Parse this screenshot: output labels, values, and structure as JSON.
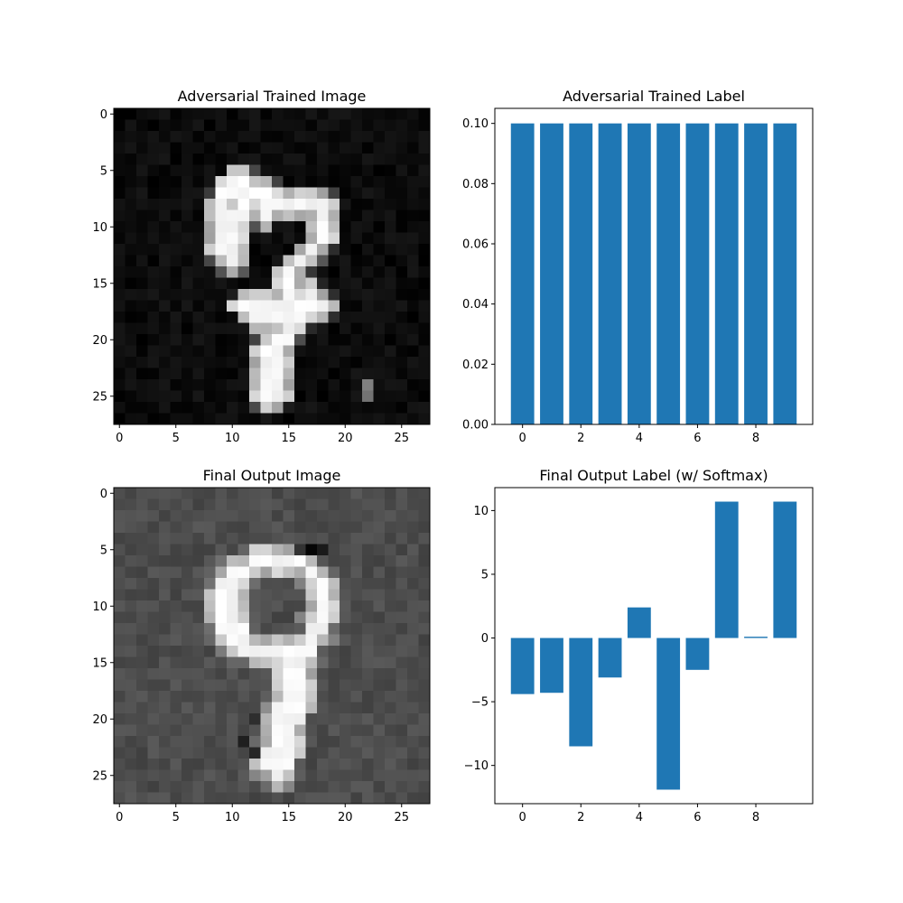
{
  "chart_data": [
    {
      "type": "heatmap",
      "title": "Adversarial Trained Image",
      "xticks": [
        0,
        5,
        10,
        15,
        20,
        25
      ],
      "yticks": [
        0,
        5,
        10,
        15,
        20,
        25
      ],
      "xlim": [
        -0.5,
        27.5
      ],
      "ylim": [
        27.5,
        -0.5
      ],
      "colormap": "gray",
      "grid_size": [
        28,
        28
      ],
      "strokes": [
        [
          [
            10,
            6
          ],
          [
            11,
            6
          ],
          [
            12,
            7
          ],
          [
            13,
            7
          ],
          [
            14,
            8
          ],
          [
            15,
            8
          ],
          [
            16,
            8
          ],
          [
            17,
            8
          ],
          [
            18,
            8
          ],
          [
            18,
            9
          ],
          [
            18,
            10
          ],
          [
            18,
            11
          ],
          [
            17,
            12
          ],
          [
            16,
            13
          ],
          [
            15,
            14
          ],
          [
            15,
            15
          ],
          [
            15,
            16
          ]
        ],
        [
          [
            10,
            6
          ],
          [
            9,
            8
          ],
          [
            9,
            10
          ],
          [
            9,
            12
          ],
          [
            10,
            13
          ]
        ],
        [
          [
            11,
            6
          ],
          [
            11,
            8
          ],
          [
            10,
            10
          ],
          [
            10,
            12
          ]
        ],
        [
          [
            13,
            7
          ],
          [
            13,
            9
          ]
        ],
        [
          [
            15,
            14
          ],
          [
            15,
            17
          ],
          [
            15,
            19
          ],
          [
            14,
            21
          ],
          [
            14,
            23
          ],
          [
            14,
            25
          ]
        ],
        [
          [
            13,
            21
          ],
          [
            13,
            23
          ],
          [
            13,
            25
          ]
        ],
        [
          [
            11,
            17
          ],
          [
            12,
            17
          ],
          [
            13,
            17
          ],
          [
            14,
            17
          ],
          [
            15,
            17
          ],
          [
            16,
            17
          ],
          [
            17,
            17
          ],
          [
            18,
            17
          ]
        ],
        [
          [
            12,
            18
          ],
          [
            16,
            18
          ],
          [
            17,
            16
          ]
        ]
      ],
      "highlights": [
        [
          22,
          24,
          0.5
        ],
        [
          22,
          25,
          0.45
        ]
      ],
      "noise_level": 0.09
    },
    {
      "type": "bar",
      "title": "Adversarial Trained Label",
      "categories": [
        0,
        1,
        2,
        3,
        4,
        5,
        6,
        7,
        8,
        9
      ],
      "values": [
        0.1,
        0.1,
        0.1,
        0.1,
        0.1,
        0.1,
        0.1,
        0.1,
        0.1,
        0.1
      ],
      "xticks": [
        0,
        2,
        4,
        6,
        8
      ],
      "yticks": [
        "0.00",
        "0.02",
        "0.04",
        "0.06",
        "0.08",
        "0.10"
      ],
      "xlim": [
        -0.95,
        9.95
      ],
      "ylim": [
        0,
        0.105
      ],
      "bar_color": "#1f77b4"
    },
    {
      "type": "heatmap",
      "title": "Final Output Image",
      "xticks": [
        0,
        5,
        10,
        15,
        20,
        25
      ],
      "yticks": [
        0,
        5,
        10,
        15,
        20,
        25
      ],
      "xlim": [
        -0.5,
        27.5
      ],
      "ylim": [
        27.5,
        -0.5
      ],
      "colormap": "gray",
      "grid_size": [
        28,
        28
      ],
      "strokes": [
        [
          [
            9,
            9
          ],
          [
            10,
            7
          ],
          [
            11,
            7
          ],
          [
            12,
            6
          ],
          [
            13,
            6
          ],
          [
            14,
            6
          ],
          [
            15,
            6
          ],
          [
            16,
            6
          ],
          [
            17,
            7
          ],
          [
            18,
            8
          ],
          [
            18,
            9
          ],
          [
            18,
            11
          ],
          [
            17,
            13
          ],
          [
            16,
            15
          ]
        ],
        [
          [
            9,
            9
          ],
          [
            9,
            11
          ],
          [
            10,
            13
          ],
          [
            12,
            14
          ],
          [
            14,
            14
          ],
          [
            16,
            14
          ]
        ],
        [
          [
            10,
            8
          ],
          [
            10,
            11
          ],
          [
            11,
            13
          ]
        ],
        [
          [
            16,
            14
          ],
          [
            16,
            17
          ],
          [
            16,
            19
          ],
          [
            15,
            21
          ],
          [
            15,
            23
          ],
          [
            14,
            25
          ]
        ],
        [
          [
            15,
            15
          ],
          [
            15,
            18
          ],
          [
            14,
            20
          ],
          [
            14,
            22
          ],
          [
            13,
            24
          ]
        ]
      ],
      "dark_spots": [
        [
          17,
          5,
          0.02
        ],
        [
          18,
          5,
          0.1
        ],
        [
          16,
          5,
          0.2
        ],
        [
          11,
          22,
          0.12
        ],
        [
          12,
          23,
          0.15
        ],
        [
          12,
          20,
          0.18
        ]
      ],
      "background_level": 0.3,
      "noise_level": 0.05
    },
    {
      "type": "bar",
      "title": "Final Output Label (w/ Softmax)",
      "categories": [
        0,
        1,
        2,
        3,
        4,
        5,
        6,
        7,
        8,
        9
      ],
      "values": [
        -4.4,
        -4.3,
        -8.5,
        -3.1,
        2.4,
        -11.9,
        -2.5,
        10.7,
        0.1,
        10.7
      ],
      "xticks": [
        0,
        2,
        4,
        6,
        8
      ],
      "yticks": [
        -10,
        -5,
        0,
        5,
        10
      ],
      "xlim": [
        -0.95,
        9.95
      ],
      "ylim": [
        -13.0,
        11.8
      ],
      "bar_color": "#1f77b4"
    }
  ]
}
